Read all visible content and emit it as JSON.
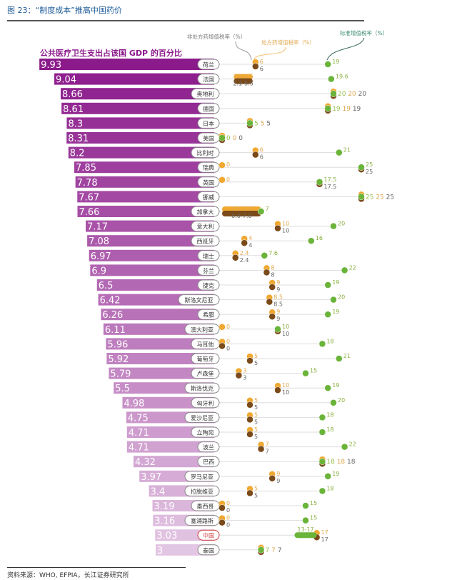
{
  "figure_title": "图 23：“制度成本”推高中国药价",
  "source": "资料来源：WHO, EFPIA，长江证券研究所",
  "chart_data": {
    "type": "bar",
    "title": "公共医疗卫生支出占该国 GDP 的百分比",
    "legend": {
      "non_prescription": "非处方药增值税率（%）",
      "prescription": "处方药增值税率（%）",
      "standard": "标准增值税率（%）"
    },
    "colors": {
      "bar_dark": "#8b1a8b",
      "bar_light": "#e3c6e3",
      "prescription": "#f0a830",
      "non_prescription": "#7a4a1a",
      "standard": "#6ab43a"
    },
    "rows": [
      {
        "country": "荷兰",
        "gdp": "9.93",
        "prescription": "6",
        "non_prescription": "6",
        "standard": "19"
      },
      {
        "country": "法国",
        "gdp": "9.04",
        "prescription": "2.1-5.5",
        "non_prescription": "2.1-5.5",
        "standard": "19.6"
      },
      {
        "country": "奥地利",
        "gdp": "8.66",
        "prescription": "20",
        "non_prescription": "20",
        "standard": "20"
      },
      {
        "country": "德国",
        "gdp": "8.61",
        "prescription": "19",
        "non_prescription": "19",
        "standard": "19"
      },
      {
        "country": "日本",
        "gdp": "8.3",
        "prescription": "5",
        "non_prescription": "5",
        "standard": "5"
      },
      {
        "country": "美国",
        "gdp": "8.31",
        "prescription": "0",
        "non_prescription": "0",
        "standard": "0"
      },
      {
        "country": "比利时",
        "gdp": "8.2",
        "prescription": "6",
        "non_prescription": "6",
        "standard": "21"
      },
      {
        "country": "瑞典",
        "gdp": "7.85",
        "prescription": "0",
        "non_prescription": "25",
        "standard": "25"
      },
      {
        "country": "英国",
        "gdp": "7.78",
        "prescription": "0",
        "non_prescription": "17.5",
        "standard": "17.5"
      },
      {
        "country": "挪威",
        "gdp": "7.67",
        "prescription": "25",
        "non_prescription": "25",
        "standard": "25"
      },
      {
        "country": "加拿大",
        "gdp": "7.66",
        "prescription": "0.0-7.0",
        "non_prescription": "0.0-7.0",
        "standard": "7"
      },
      {
        "country": "意大利",
        "gdp": "7.17",
        "prescription": "10",
        "non_prescription": "10",
        "standard": "20"
      },
      {
        "country": "西班牙",
        "gdp": "7.08",
        "prescription": "4",
        "non_prescription": "4",
        "standard": "16"
      },
      {
        "country": "瑞士",
        "gdp": "6.97",
        "prescription": "2.4",
        "non_prescription": "2.4",
        "standard": "7.6"
      },
      {
        "country": "芬兰",
        "gdp": "6.9",
        "prescription": "8",
        "non_prescription": "8",
        "standard": "22"
      },
      {
        "country": "捷克",
        "gdp": "6.5",
        "prescription": "9",
        "non_prescription": "9",
        "standard": "19"
      },
      {
        "country": "斯洛文尼亚",
        "gdp": "6.42",
        "prescription": "8.5",
        "non_prescription": "8.5",
        "standard": "20"
      },
      {
        "country": "希腊",
        "gdp": "6.26",
        "prescription": "9",
        "non_prescription": "9",
        "standard": "19"
      },
      {
        "country": "澳大利亚",
        "gdp": "6.11",
        "prescription": "0",
        "non_prescription": "10",
        "standard": "10"
      },
      {
        "country": "马耳他",
        "gdp": "5.96",
        "prescription": "0",
        "non_prescription": "0",
        "standard": "18"
      },
      {
        "country": "葡萄牙",
        "gdp": "5.92",
        "prescription": "5",
        "non_prescription": "5",
        "standard": "21"
      },
      {
        "country": "卢森堡",
        "gdp": "5.79",
        "prescription": "3",
        "non_prescription": "3",
        "standard": "15"
      },
      {
        "country": "斯洛伐克",
        "gdp": "5.5",
        "prescription": "10",
        "non_prescription": "10",
        "standard": "19"
      },
      {
        "country": "匈牙利",
        "gdp": "4.98",
        "prescription": "5",
        "non_prescription": "5",
        "standard": "20"
      },
      {
        "country": "爱沙尼亚",
        "gdp": "4.75",
        "prescription": "5",
        "non_prescription": "5",
        "standard": "18"
      },
      {
        "country": "立陶宛",
        "gdp": "4.71",
        "prescription": "5",
        "non_prescription": "5",
        "standard": "18"
      },
      {
        "country": "波兰",
        "gdp": "4.71",
        "prescription": "7",
        "non_prescription": "7",
        "standard": "22"
      },
      {
        "country": "巴西",
        "gdp": "4.32",
        "prescription": "18",
        "non_prescription": "18",
        "standard": "18"
      },
      {
        "country": "罗马尼亚",
        "gdp": "3.97",
        "prescription": "9",
        "non_prescription": "9",
        "standard": "19"
      },
      {
        "country": "拉脱维亚",
        "gdp": "3.4",
        "prescription": "5",
        "non_prescription": "5",
        "standard": "18"
      },
      {
        "country": "墨西哥",
        "gdp": "3.19",
        "prescription": "0",
        "non_prescription": "0",
        "standard": "15"
      },
      {
        "country": "塞浦路斯",
        "gdp": "3.16",
        "prescription": "0",
        "non_prescription": "0",
        "standard": "15"
      },
      {
        "country": "中国",
        "gdp": "3.03",
        "prescription": "17",
        "non_prescription": "17",
        "standard": "13-17"
      },
      {
        "country": "泰国",
        "gdp": "3",
        "prescription": "7",
        "non_prescription": "7",
        "standard": "7"
      }
    ]
  }
}
